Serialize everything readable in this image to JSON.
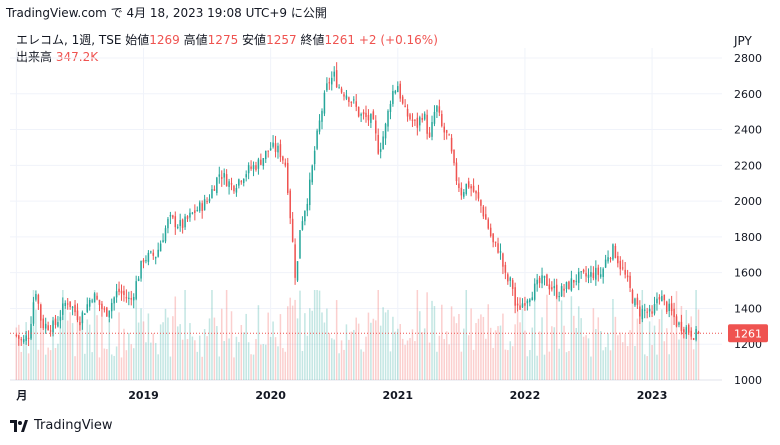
{
  "header": {
    "source_line": "TradingView.com で 4月 18, 2023 19:08 UTC+9 に公開"
  },
  "legend": {
    "symbol": "エレコム, 1週, TSE",
    "open_label": "始値",
    "open": "1269",
    "high_label": "高値",
    "high": "1275",
    "low_label": "安値",
    "low": "1257",
    "close_label": "終値",
    "close": "1261",
    "change": "+2 (+0.16%)",
    "volume_label": "出来高",
    "volume": "347.2K"
  },
  "currency": "JPY",
  "footer": {
    "brand": "TradingView"
  },
  "colors": {
    "up": "#26a69a",
    "down": "#ef5350",
    "grid": "#f0f3fa",
    "text": "#131722",
    "price_line": "#ef5350"
  },
  "chart_data": {
    "type": "candlestick",
    "frequency": "weekly",
    "last_price": 1261,
    "last_price_label": "1261",
    "ylim": [
      1000,
      2800
    ],
    "y_ticks": [
      1000,
      1200,
      1400,
      1600,
      1800,
      2000,
      2200,
      2400,
      2600,
      2800
    ],
    "x_ticks": [
      {
        "label": "月",
        "t": 2018.0
      },
      {
        "label": "2019",
        "t": 2019.0
      },
      {
        "label": "2020",
        "t": 2020.0
      },
      {
        "label": "2021",
        "t": 2021.0
      },
      {
        "label": "2022",
        "t": 2022.0
      },
      {
        "label": "2023",
        "t": 2023.0
      }
    ],
    "t_range": [
      2017.95,
      2023.55
    ],
    "close_anchors": [
      [
        2018.0,
        1250
      ],
      [
        2018.05,
        1210
      ],
      [
        2018.1,
        1260
      ],
      [
        2018.15,
        1520
      ],
      [
        2018.2,
        1310
      ],
      [
        2018.3,
        1300
      ],
      [
        2018.4,
        1450
      ],
      [
        2018.5,
        1340
      ],
      [
        2018.6,
        1480
      ],
      [
        2018.7,
        1370
      ],
      [
        2018.8,
        1500
      ],
      [
        2018.9,
        1440
      ],
      [
        2019.0,
        1680
      ],
      [
        2019.1,
        1700
      ],
      [
        2019.2,
        1900
      ],
      [
        2019.3,
        1860
      ],
      [
        2019.4,
        1940
      ],
      [
        2019.5,
        2000
      ],
      [
        2019.6,
        2160
      ],
      [
        2019.7,
        2080
      ],
      [
        2019.8,
        2160
      ],
      [
        2019.9,
        2210
      ],
      [
        2020.0,
        2300
      ],
      [
        2020.07,
        2280
      ],
      [
        2020.12,
        2200
      ],
      [
        2020.17,
        1790
      ],
      [
        2020.2,
        1530
      ],
      [
        2020.23,
        1850
      ],
      [
        2020.3,
        2050
      ],
      [
        2020.35,
        2300
      ],
      [
        2020.4,
        2500
      ],
      [
        2020.45,
        2660
      ],
      [
        2020.5,
        2700
      ],
      [
        2020.55,
        2620
      ],
      [
        2020.6,
        2600
      ],
      [
        2020.65,
        2550
      ],
      [
        2020.7,
        2480
      ],
      [
        2020.8,
        2450
      ],
      [
        2020.85,
        2280
      ],
      [
        2020.9,
        2400
      ],
      [
        2020.95,
        2600
      ],
      [
        2021.0,
        2650
      ],
      [
        2021.05,
        2500
      ],
      [
        2021.15,
        2420
      ],
      [
        2021.2,
        2500
      ],
      [
        2021.25,
        2340
      ],
      [
        2021.3,
        2540
      ],
      [
        2021.35,
        2400
      ],
      [
        2021.4,
        2350
      ],
      [
        2021.45,
        2150
      ],
      [
        2021.5,
        2050
      ],
      [
        2021.55,
        2100
      ],
      [
        2021.6,
        2050
      ],
      [
        2021.65,
        1980
      ],
      [
        2021.7,
        1880
      ],
      [
        2021.75,
        1760
      ],
      [
        2021.8,
        1730
      ],
      [
        2021.85,
        1560
      ],
      [
        2021.9,
        1540
      ],
      [
        2021.93,
        1380
      ],
      [
        2022.0,
        1450
      ],
      [
        2022.1,
        1530
      ],
      [
        2022.15,
        1560
      ],
      [
        2022.25,
        1490
      ],
      [
        2022.3,
        1500
      ],
      [
        2022.4,
        1570
      ],
      [
        2022.5,
        1580
      ],
      [
        2022.55,
        1600
      ],
      [
        2022.6,
        1590
      ],
      [
        2022.65,
        1700
      ],
      [
        2022.7,
        1730
      ],
      [
        2022.75,
        1640
      ],
      [
        2022.8,
        1560
      ],
      [
        2022.85,
        1450
      ],
      [
        2022.9,
        1380
      ],
      [
        2022.95,
        1390
      ],
      [
        2023.0,
        1350
      ],
      [
        2023.05,
        1490
      ],
      [
        2023.1,
        1420
      ],
      [
        2023.15,
        1380
      ],
      [
        2023.2,
        1310
      ],
      [
        2023.25,
        1300
      ],
      [
        2023.3,
        1270
      ],
      [
        2023.35,
        1250
      ],
      [
        2023.38,
        1261
      ]
    ]
  }
}
